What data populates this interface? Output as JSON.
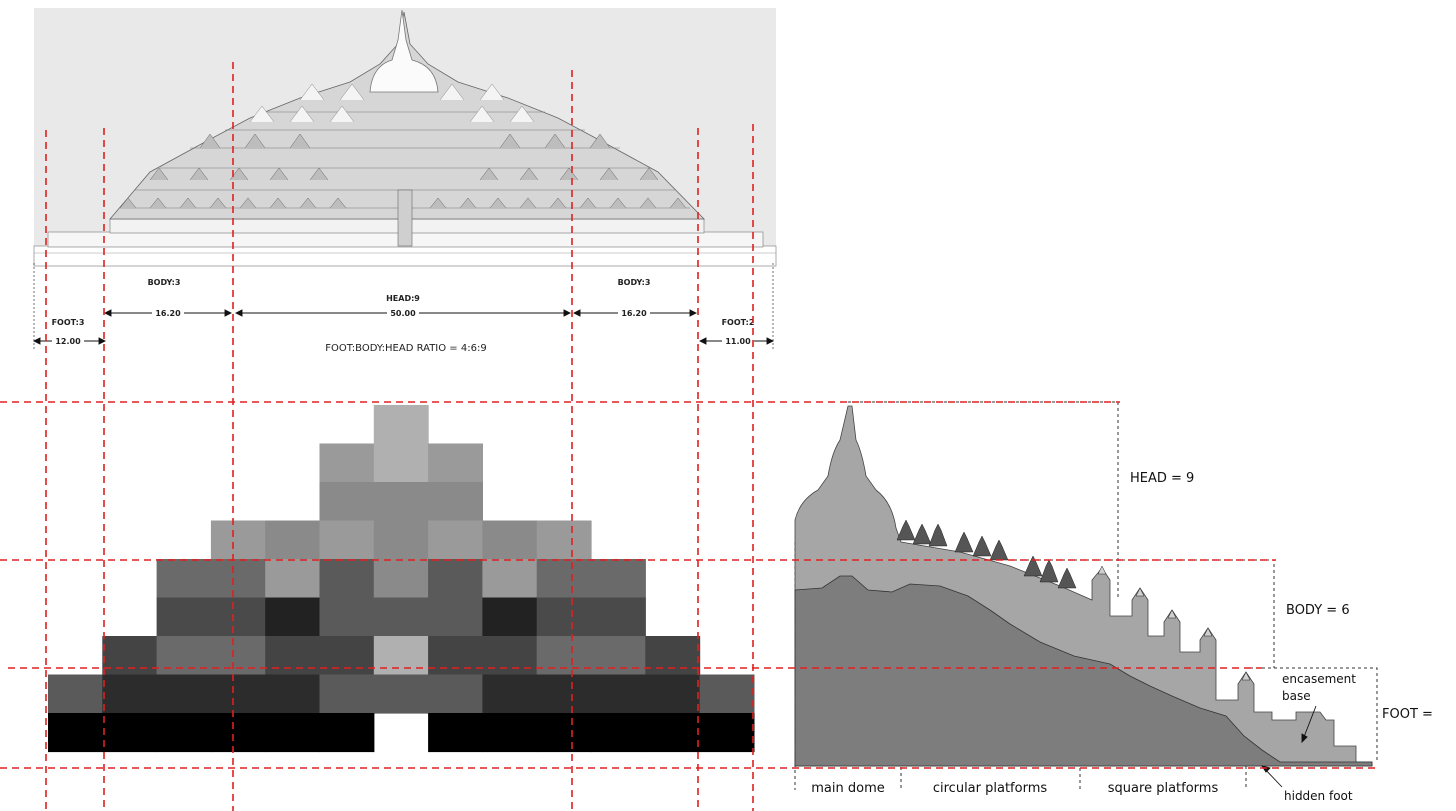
{
  "elevation": {
    "segment_labels": {
      "foot_left": "FOOT:3",
      "body_left": "BODY:3",
      "head": "HEAD:9",
      "body_right": "BODY:3",
      "foot_right": "FOOT:2"
    },
    "dimension_values": {
      "foot_left": "12.00",
      "body_left": "16.20",
      "head": "50.00",
      "body_right": "16.20",
      "foot_right": "11.00"
    },
    "ratio_caption": "FOOT:BODY:HEAD RATIO = 4:6:9"
  },
  "pixel_grid": {
    "shades": [
      [
        "#ffffff",
        "#ffffff",
        "#ffffff",
        "#ffffff",
        "#ffffff",
        "#ffffff",
        "#b0b0b0",
        "#ffffff",
        "#ffffff",
        "#ffffff",
        "#ffffff",
        "#ffffff",
        "#ffffff"
      ],
      [
        "#ffffff",
        "#ffffff",
        "#ffffff",
        "#ffffff",
        "#ffffff",
        "#9a9a9a",
        "#b0b0b0",
        "#9a9a9a",
        "#ffffff",
        "#ffffff",
        "#ffffff",
        "#ffffff",
        "#ffffff"
      ],
      [
        "#ffffff",
        "#ffffff",
        "#ffffff",
        "#ffffff",
        "#ffffff",
        "#8a8a8a",
        "#8a8a8a",
        "#8a8a8a",
        "#ffffff",
        "#ffffff",
        "#ffffff",
        "#ffffff",
        "#ffffff"
      ],
      [
        "#ffffff",
        "#ffffff",
        "#ffffff",
        "#9a9a9a",
        "#8a8a8a",
        "#9a9a9a",
        "#8a8a8a",
        "#9a9a9a",
        "#8a8a8a",
        "#9a9a9a",
        "#ffffff",
        "#ffffff",
        "#ffffff"
      ],
      [
        "#ffffff",
        "#ffffff",
        "#6a6a6a",
        "#6a6a6a",
        "#9a9a9a",
        "#5a5a5a",
        "#8a8a8a",
        "#5a5a5a",
        "#9a9a9a",
        "#6a6a6a",
        "#6a6a6a",
        "#ffffff",
        "#ffffff"
      ],
      [
        "#ffffff",
        "#ffffff",
        "#4a4a4a",
        "#4a4a4a",
        "#222222",
        "#5a5a5a",
        "#5a5a5a",
        "#5a5a5a",
        "#222222",
        "#4a4a4a",
        "#4a4a4a",
        "#ffffff",
        "#ffffff"
      ],
      [
        "#ffffff",
        "#444444",
        "#6a6a6a",
        "#6a6a6a",
        "#444444",
        "#444444",
        "#b0b0b0",
        "#444444",
        "#444444",
        "#6a6a6a",
        "#6a6a6a",
        "#444444",
        "#ffffff"
      ],
      [
        "#5a5a5a",
        "#2c2c2c",
        "#2c2c2c",
        "#2c2c2c",
        "#2c2c2c",
        "#5a5a5a",
        "#5a5a5a",
        "#5a5a5a",
        "#2c2c2c",
        "#2c2c2c",
        "#2c2c2c",
        "#2c2c2c",
        "#5a5a5a"
      ],
      [
        "#000000",
        "#000000",
        "#000000",
        "#000000",
        "#000000",
        "#000000",
        "#ffffff",
        "#000000",
        "#000000",
        "#000000",
        "#000000",
        "#000000",
        "#000000"
      ]
    ]
  },
  "section": {
    "head_label": "HEAD = 9",
    "body_label": "BODY = 6",
    "foot_label": "FOOT =",
    "encasement_label": "encasement",
    "base_label": "base",
    "hidden_foot_label": "hidden foot",
    "bottom_labels": [
      "main dome",
      "circular platforms",
      "square platforms"
    ]
  },
  "colors": {
    "guide_line": "#e02020",
    "drawing_bg": "#e9e9e9",
    "section_dark": "#7d7d7d",
    "section_light": "#a6a6a6"
  }
}
